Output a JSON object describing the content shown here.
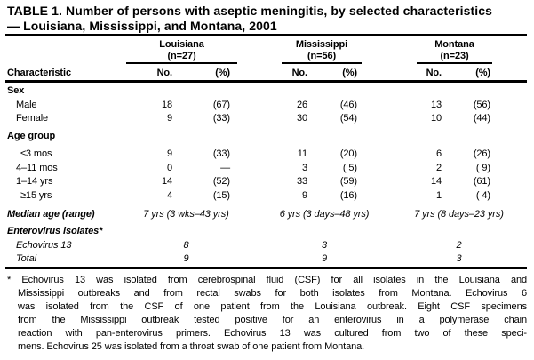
{
  "title": {
    "line1": "TABLE 1. Number of persons with aseptic meningitis, by selected characteristics",
    "line2": "— Louisiana, Mississippi, and Montana, 2001"
  },
  "header": {
    "characteristic_label": "Characteristic",
    "groups": [
      {
        "name": "Louisiana",
        "n": "(n=27)",
        "no_label": "No.",
        "pct_label": "(%)"
      },
      {
        "name": "Mississippi",
        "n": "(n=56)",
        "no_label": "No.",
        "pct_label": "(%)"
      },
      {
        "name": "Montana",
        "n": "(n=23)",
        "no_label": "No.",
        "pct_label": "(%)"
      }
    ]
  },
  "sections": [
    {
      "label": "Sex",
      "items": [
        {
          "label": "Male",
          "values": [
            "18",
            "(67)",
            "26",
            "(46)",
            "13",
            "(56)"
          ]
        },
        {
          "label": "Female",
          "values": [
            "9",
            "(33)",
            "30",
            "(54)",
            "10",
            "(44)"
          ]
        }
      ]
    },
    {
      "label": "Age group",
      "items": [
        {
          "label": "≤3 mos",
          "values": [
            "9",
            "(33)",
            "11",
            "(20)",
            "6",
            "(26)"
          ]
        },
        {
          "label": "4–11 mos",
          "values": [
            "0",
            "—",
            "3",
            "( 5)",
            "2",
            "( 9)"
          ]
        },
        {
          "label": "1–14 yrs",
          "values": [
            "14",
            "(52)",
            "33",
            "(59)",
            "14",
            "(61)"
          ]
        },
        {
          "label": "≥15 yrs",
          "values": [
            "4",
            "(15)",
            "9",
            "(16)",
            "1",
            "( 4)"
          ]
        }
      ]
    }
  ],
  "median": {
    "label": "Median age (range)",
    "values": [
      "7 yrs (3 wks–43 yrs)",
      "6 yrs (3 days–48 yrs)",
      "7 yrs (8 days–23 yrs)"
    ]
  },
  "enterovirus": {
    "label": "Enterovirus isolates*",
    "items": [
      {
        "label": "Echovirus 13",
        "values": [
          "8",
          "3",
          "2"
        ]
      },
      {
        "label": "Total",
        "values": [
          "9",
          "9",
          "3"
        ]
      }
    ]
  },
  "footnote": {
    "lines": [
      "* Echovirus 13 was isolated from cerebrospinal fluid (CSF) for all isolates in the Louisiana and",
      "Mississippi outbreaks and from rectal swabs for both isolates from Montana. Echovirus 6",
      "was isolated from the CSF of one patient from the Louisiana outbreak. Eight CSF specimens",
      "from the Mississippi outbreak tested positive for an enterovirus in a polymerase chain",
      "reaction with pan-enterovirus primers. Echovirus 13 was cultured from two of these speci-",
      "mens. Echovirus 25 was isolated from a throat swab of one patient from Montana."
    ]
  }
}
